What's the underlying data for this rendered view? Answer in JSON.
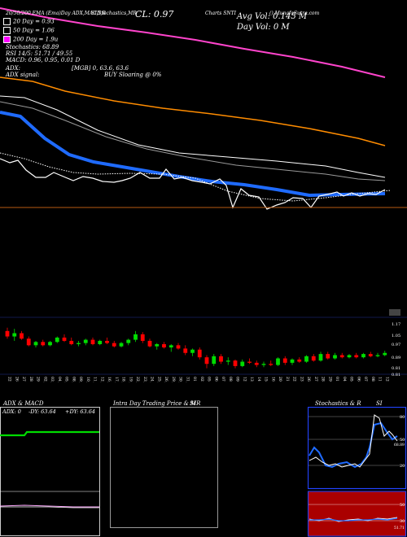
{
  "header": {
    "line1_left": "20/50/200 EMA (Ema)Day ADX,MACD,R",
    "line1_mid": "SI,Stochastics,MR",
    "cl_label": "CL: 0.97",
    "line1_right": "Charts SNTI",
    "line1_far": "() MunafaSutra.com",
    "avg_vol": "Avg Vol: 0.145 M",
    "day_vol": "Day Vol: 0  M",
    "legend": [
      {
        "label": "20  Day = 0.93",
        "color": "#ffffff"
      },
      {
        "label": "50  Day = 1.06",
        "color": "#ffffff"
      },
      {
        "label": "200  Day = 1.9u",
        "color": "#ff00ff"
      }
    ],
    "stochastics": "Stochastics: 68.89",
    "rsi": "RSI 14/5: 51.71 / 49.55",
    "macd": "MACD: 0.96,  0.95,  0.01 D",
    "adx": "ADX:",
    "adx_mid": "[MGB] 0, 63.6, 63.6",
    "adx_signal": "ADX signal:",
    "buy_selling": "BUY Sloaring @ 0%"
  },
  "colors": {
    "ema200": "#ff44cc",
    "orange": "#ff8c00",
    "blue": "#1f6bff",
    "up": "#00dd00",
    "down": "#ff0000",
    "ref_line": "#b85a12",
    "grid_blue": "#223399"
  },
  "chart_data": [
    {
      "type": "candlestick",
      "y_tick_labels": [
        "1.17",
        "1.05",
        "0.97",
        "0.89",
        "0.81",
        "0.81"
      ],
      "ylim": [
        0.79,
        1.28
      ],
      "dates": [
        "22 Dec",
        "26 Dec",
        "27 Dec",
        "28 Dec",
        "29 Dec",
        "02 Jan",
        "03 Jan",
        "04 Jan",
        "05 Jan",
        "08 Jan",
        "09 Jan",
        "10 Jan",
        "11 Jan",
        "12 Jan",
        "16 Jan",
        "17 Jan",
        "18 Jan",
        "19 Jan",
        "22 Jan",
        "23 Jan",
        "24 Jan",
        "25 Jan",
        "26 Jan",
        "29 Jan",
        "30 Jan",
        "31 Jan",
        "01 Feb",
        "02 Feb",
        "05 Feb",
        "06 Feb",
        "07 Feb",
        "08 Feb",
        "09 Feb",
        "12 Feb",
        "13 Feb",
        "14 Feb",
        "15 Feb",
        "16 Feb",
        "20 Feb",
        "21 Feb",
        "22 Feb",
        "23 Feb",
        "26 Feb",
        "27 Feb",
        "28 Feb",
        "29 Feb",
        "01 Mar",
        "04 Mar",
        "05 Mar",
        "06 Mar",
        "07 Mar",
        "08 Mar",
        "11 Mar",
        "12 Mar"
      ],
      "candles": [
        [
          1.17,
          1.2,
          1.1,
          1.12
        ],
        [
          1.12,
          1.19,
          1.08,
          1.15
        ],
        [
          1.15,
          1.17,
          1.09,
          1.1
        ],
        [
          1.1,
          1.12,
          1.03,
          1.04
        ],
        [
          1.04,
          1.08,
          1.02,
          1.07
        ],
        [
          1.07,
          1.09,
          1.03,
          1.04
        ],
        [
          1.04,
          1.08,
          1.03,
          1.07
        ],
        [
          1.07,
          1.12,
          1.06,
          1.11
        ],
        [
          1.11,
          1.14,
          1.07,
          1.08
        ],
        [
          1.08,
          1.11,
          1.04,
          1.05
        ],
        [
          1.05,
          1.08,
          1.03,
          1.06
        ],
        [
          1.06,
          1.1,
          1.04,
          1.09
        ],
        [
          1.09,
          1.11,
          1.04,
          1.05
        ],
        [
          1.05,
          1.09,
          1.04,
          1.08
        ],
        [
          1.08,
          1.11,
          1.05,
          1.06
        ],
        [
          1.06,
          1.08,
          1.02,
          1.03
        ],
        [
          1.03,
          1.07,
          1.02,
          1.06
        ],
        [
          1.06,
          1.1,
          1.04,
          1.09
        ],
        [
          1.09,
          1.17,
          1.07,
          1.14
        ],
        [
          1.14,
          1.16,
          1.06,
          1.08
        ],
        [
          1.08,
          1.1,
          1.02,
          1.03
        ],
        [
          1.03,
          1.06,
          1.0,
          1.05
        ],
        [
          1.05,
          1.07,
          1.01,
          1.02
        ],
        [
          1.02,
          1.05,
          0.98,
          1.04
        ],
        [
          1.04,
          1.06,
          1.0,
          1.01
        ],
        [
          1.01,
          1.04,
          0.95,
          0.97
        ],
        [
          0.97,
          1.01,
          0.94,
          1.0
        ],
        [
          1.0,
          1.02,
          0.91,
          0.93
        ],
        [
          0.93,
          0.95,
          0.83,
          0.87
        ],
        [
          0.87,
          0.96,
          0.85,
          0.94
        ],
        [
          0.94,
          0.96,
          0.87,
          0.89
        ],
        [
          0.89,
          0.93,
          0.86,
          0.9
        ],
        [
          0.9,
          0.91,
          0.83,
          0.85
        ],
        [
          0.85,
          0.91,
          0.84,
          0.89
        ],
        [
          0.89,
          0.92,
          0.87,
          0.88
        ],
        [
          0.88,
          0.9,
          0.84,
          0.86
        ],
        [
          0.86,
          0.89,
          0.84,
          0.87
        ],
        [
          0.87,
          0.9,
          0.85,
          0.86
        ],
        [
          0.86,
          0.93,
          0.85,
          0.92
        ],
        [
          0.92,
          0.94,
          0.86,
          0.88
        ],
        [
          0.88,
          0.92,
          0.86,
          0.91
        ],
        [
          0.91,
          0.93,
          0.88,
          0.89
        ],
        [
          0.89,
          0.95,
          0.88,
          0.94
        ],
        [
          0.94,
          0.96,
          0.89,
          0.9
        ],
        [
          0.9,
          0.98,
          0.89,
          0.96
        ],
        [
          0.96,
          0.98,
          0.91,
          0.92
        ],
        [
          0.92,
          0.97,
          0.91,
          0.95
        ],
        [
          0.95,
          0.97,
          0.92,
          0.93
        ],
        [
          0.93,
          0.96,
          0.92,
          0.95
        ],
        [
          0.95,
          0.97,
          0.92,
          0.93
        ],
        [
          0.93,
          0.97,
          0.92,
          0.96
        ],
        [
          0.96,
          0.98,
          0.93,
          0.94
        ],
        [
          0.94,
          0.97,
          0.93,
          0.95
        ],
        [
          0.95,
          0.99,
          0.94,
          0.97
        ]
      ]
    }
  ],
  "panels": {
    "adx": {
      "title": "ADX  & MACD",
      "adx_line": "ADX: 0",
      "dy_minus": "-DY: 63.64",
      "dy_plus": "+DY: 63.64"
    },
    "intra": {
      "title": "Intra  Day Trading Price  & MR",
      "si": "SI"
    },
    "stoch": {
      "title": "Stochastics & R",
      "si": "SI",
      "stoch_ticks": [
        "80",
        "50",
        "20"
      ],
      "rsi_ticks": [
        "50",
        "30"
      ],
      "stoch_value": "68.89",
      "rsi_value": "51.71"
    }
  }
}
